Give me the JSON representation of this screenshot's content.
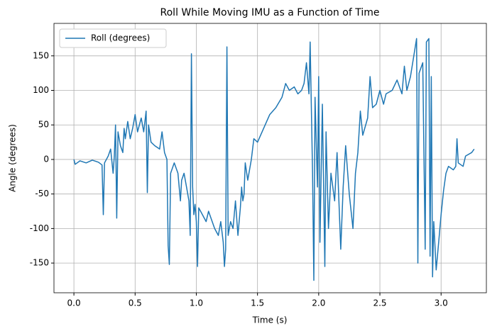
{
  "chart_data": {
    "type": "line",
    "title": "Roll While Moving IMU as a Function of Time",
    "xlabel": "Time (s)",
    "ylabel": "Angle (degrees)",
    "x": [
      0.0,
      0.01,
      0.05,
      0.1,
      0.15,
      0.2,
      0.23,
      0.24,
      0.25,
      0.28,
      0.3,
      0.32,
      0.33,
      0.34,
      0.35,
      0.36,
      0.38,
      0.4,
      0.41,
      0.42,
      0.44,
      0.46,
      0.48,
      0.5,
      0.52,
      0.55,
      0.57,
      0.59,
      0.6,
      0.61,
      0.63,
      0.66,
      0.7,
      0.72,
      0.74,
      0.76,
      0.77,
      0.78,
      0.79,
      0.82,
      0.85,
      0.87,
      0.88,
      0.9,
      0.92,
      0.94,
      0.95,
      0.96,
      0.97,
      0.98,
      0.99,
      1.0,
      1.01,
      1.02,
      1.05,
      1.08,
      1.1,
      1.15,
      1.18,
      1.2,
      1.22,
      1.23,
      1.24,
      1.25,
      1.26,
      1.28,
      1.3,
      1.32,
      1.34,
      1.36,
      1.37,
      1.38,
      1.39,
      1.4,
      1.42,
      1.45,
      1.47,
      1.5,
      1.55,
      1.6,
      1.65,
      1.7,
      1.73,
      1.76,
      1.8,
      1.83,
      1.86,
      1.88,
      1.9,
      1.92,
      1.93,
      1.95,
      1.96,
      1.97,
      1.99,
      2.0,
      2.01,
      2.03,
      2.05,
      2.06,
      2.08,
      2.1,
      2.13,
      2.15,
      2.18,
      2.2,
      2.22,
      2.25,
      2.28,
      2.3,
      2.32,
      2.34,
      2.36,
      2.4,
      2.42,
      2.44,
      2.47,
      2.5,
      2.53,
      2.55,
      2.6,
      2.64,
      2.68,
      2.7,
      2.72,
      2.75,
      2.8,
      2.81,
      2.82,
      2.85,
      2.87,
      2.88,
      2.9,
      2.91,
      2.92,
      2.93,
      2.94,
      2.96,
      2.98,
      3.0,
      3.02,
      3.04,
      3.06,
      3.1,
      3.12,
      3.13,
      3.14,
      3.18,
      3.2,
      3.25,
      3.27
    ],
    "series": [
      {
        "name": "Roll (degrees)",
        "color": "#1f77b4",
        "values": [
          0,
          -7,
          -2,
          -5,
          -1,
          -4,
          -8,
          -80,
          -5,
          5,
          15,
          -20,
          5,
          50,
          -85,
          40,
          20,
          10,
          45,
          30,
          55,
          30,
          45,
          65,
          40,
          60,
          40,
          70,
          -48,
          50,
          25,
          20,
          15,
          40,
          10,
          0,
          -125,
          -152,
          -20,
          -5,
          -20,
          -60,
          -30,
          -20,
          -40,
          -60,
          -110,
          153,
          -40,
          -80,
          -65,
          -90,
          -155,
          -70,
          -80,
          -90,
          -75,
          -100,
          -110,
          -90,
          -120,
          -155,
          -130,
          163,
          -110,
          -90,
          -100,
          -60,
          -110,
          -70,
          -40,
          -60,
          -50,
          -5,
          -30,
          0,
          30,
          25,
          45,
          65,
          75,
          90,
          110,
          100,
          105,
          95,
          100,
          110,
          140,
          95,
          170,
          -20,
          -175,
          90,
          -40,
          120,
          -120,
          80,
          -155,
          40,
          -100,
          -20,
          -60,
          10,
          -130,
          -40,
          20,
          -50,
          -100,
          -20,
          10,
          70,
          35,
          60,
          120,
          75,
          80,
          100,
          80,
          95,
          100,
          115,
          95,
          135,
          100,
          120,
          175,
          -150,
          125,
          140,
          -130,
          170,
          175,
          -140,
          120,
          -170,
          -90,
          -160,
          -120,
          -80,
          -45,
          -20,
          -10,
          -15,
          -10,
          30,
          -5,
          -10,
          5,
          10,
          15
        ]
      }
    ],
    "xlim": [
      -0.163,
      3.37
    ],
    "ylim": [
      -193,
      197
    ],
    "xticks": [
      {
        "value": 0,
        "label": "0.0"
      },
      0.5,
      {
        "value": 1,
        "label": "1.0"
      },
      1.5,
      {
        "value": 2,
        "label": "2.0"
      },
      2.5,
      {
        "value": 3,
        "label": "3.0"
      }
    ],
    "yticks": [
      -150,
      -100,
      -50,
      0,
      50,
      100,
      150
    ],
    "grid": true,
    "legend": "upper left"
  }
}
